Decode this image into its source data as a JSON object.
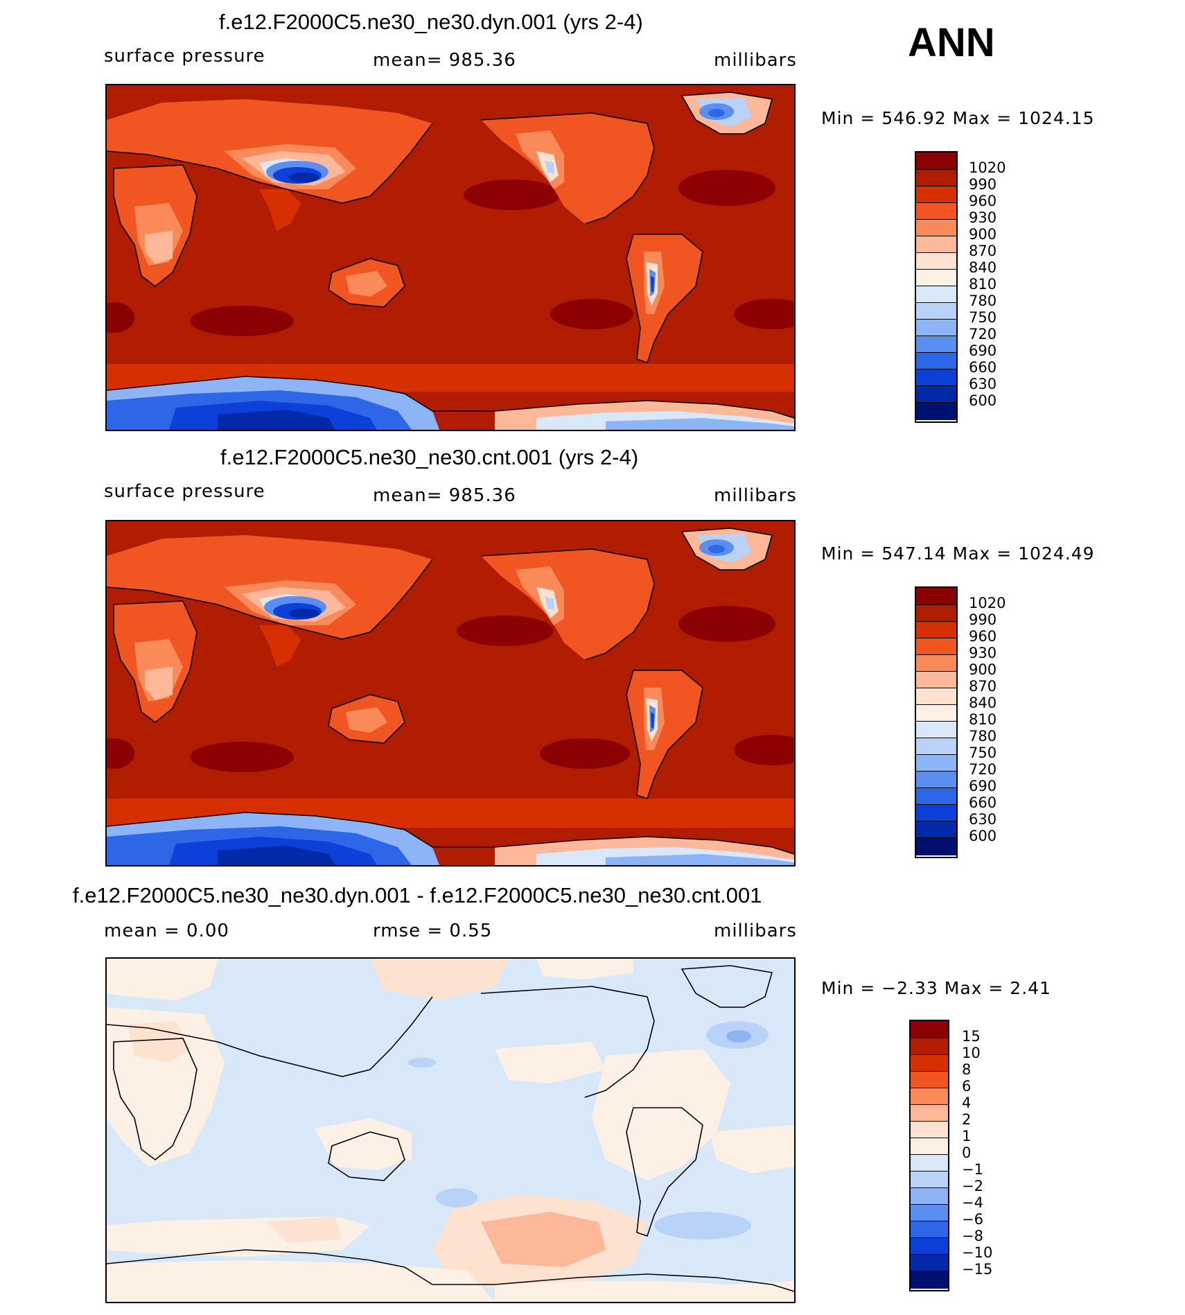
{
  "season": "ANN",
  "panels": [
    {
      "title": "f.e12.F2000C5.ne30_ne30.dyn.001 (yrs 2-4)",
      "left_label": "surface pressure",
      "center_label": "mean=  985.36",
      "units": "millibars",
      "minmax": "Min  =  546.92  Max  =  1024.15",
      "levels": [
        "1020",
        "990",
        "960",
        "930",
        "900",
        "870",
        "840",
        "810",
        "780",
        "750",
        "720",
        "690",
        "660",
        "630",
        "600"
      ]
    },
    {
      "title": "f.e12.F2000C5.ne30_ne30.cnt.001 (yrs 2-4)",
      "left_label": "surface pressure",
      "center_label": "mean=  985.36",
      "units": "millibars",
      "minmax": "Min  =  547.14  Max  =  1024.49",
      "levels": [
        "1020",
        "990",
        "960",
        "930",
        "900",
        "870",
        "840",
        "810",
        "780",
        "750",
        "720",
        "690",
        "660",
        "630",
        "600"
      ]
    },
    {
      "title": "f.e12.F2000C5.ne30_ne30.dyn.001 - f.e12.F2000C5.ne30_ne30.cnt.001",
      "left_label": "mean  =     0.00",
      "center_label": "rmse  =     0.55",
      "units": "millibars",
      "minmax": "Min  =   −2.33  Max  =     2.41",
      "levels": [
        "15",
        "10",
        "8",
        "6",
        "4",
        "2",
        "1",
        "0",
        "−1",
        "−2",
        "−4",
        "−6",
        "−8",
        "−10",
        "−15"
      ]
    }
  ],
  "colors": {
    "abs_scale": [
      "#8b0000",
      "#b01c00",
      "#d63000",
      "#f05522",
      "#fa8a5a",
      "#fcb898",
      "#fde2cf",
      "#fdf1e6",
      "#d8e8f8",
      "#b8d2f8",
      "#8db4f6",
      "#5b8ef0",
      "#2e66e8",
      "#0c40d8",
      "#022aa8",
      "#001070"
    ],
    "diff_scale": [
      "#8b0000",
      "#b01c00",
      "#d63000",
      "#f05522",
      "#fa8a5a",
      "#fcb898",
      "#fde2cf",
      "#fdf1e6",
      "#d8e8f8",
      "#b8d2f8",
      "#8db4f6",
      "#5b8ef0",
      "#2e66e8",
      "#0c40d8",
      "#022aa8",
      "#001070"
    ]
  }
}
